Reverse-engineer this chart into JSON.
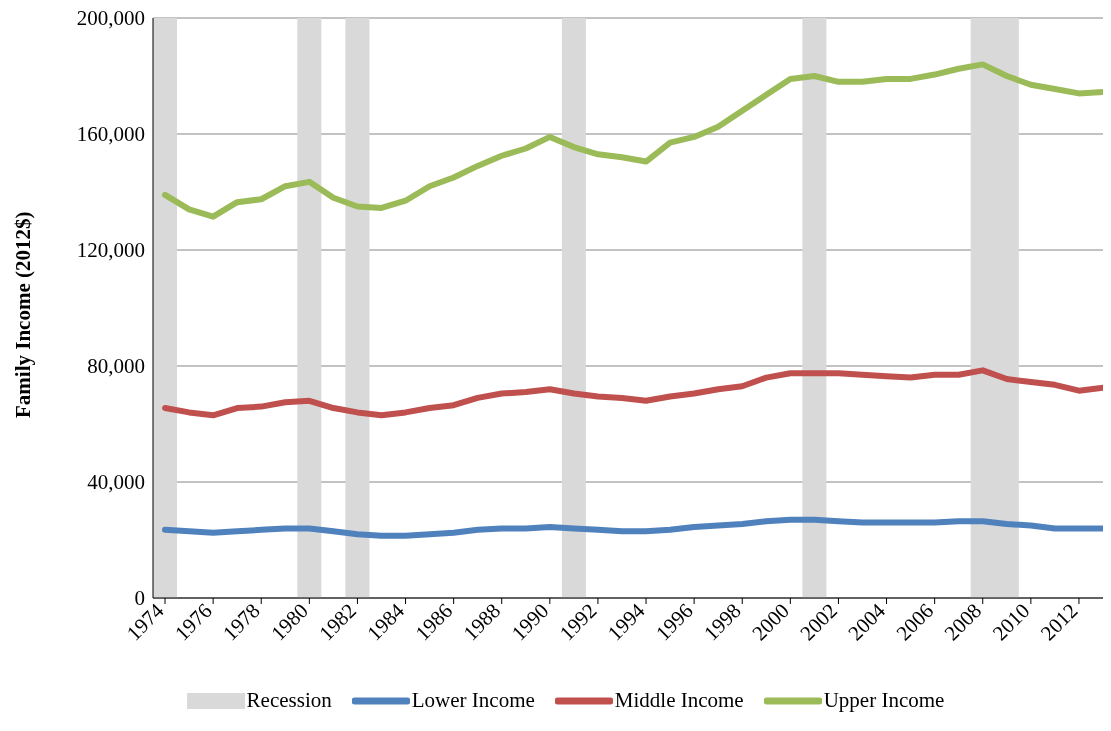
{
  "chart_data": {
    "type": "line",
    "ylabel": "Family Income (2012$)",
    "x": [
      1974,
      1975,
      1976,
      1977,
      1978,
      1979,
      1980,
      1981,
      1982,
      1983,
      1984,
      1985,
      1986,
      1987,
      1988,
      1989,
      1990,
      1991,
      1992,
      1993,
      1994,
      1995,
      1996,
      1997,
      1998,
      1999,
      2000,
      2001,
      2002,
      2003,
      2004,
      2005,
      2006,
      2007,
      2008,
      2009,
      2010,
      2011,
      2012,
      2013
    ],
    "series": [
      {
        "name": "Lower Income",
        "color": "#4f81bd",
        "values": [
          23500,
          23000,
          22500,
          23000,
          23500,
          24000,
          24000,
          23000,
          22000,
          21500,
          21500,
          22000,
          22500,
          23500,
          24000,
          24000,
          24500,
          24000,
          23500,
          23000,
          23000,
          23500,
          24500,
          25000,
          25500,
          26500,
          27000,
          27000,
          26500,
          26000,
          26000,
          26000,
          26000,
          26500,
          26500,
          25500,
          25000,
          24000,
          24000,
          24000
        ]
      },
      {
        "name": "Middle Income",
        "color": "#c0504d",
        "values": [
          65500,
          64000,
          63000,
          65500,
          66000,
          67500,
          68000,
          65500,
          64000,
          63000,
          64000,
          65500,
          66500,
          69000,
          70500,
          71000,
          72000,
          70500,
          69500,
          69000,
          68000,
          69500,
          70500,
          72000,
          73000,
          76000,
          77500,
          77500,
          77500,
          77000,
          76500,
          76000,
          77000,
          77000,
          78500,
          75500,
          74500,
          73500,
          71500,
          72500
        ]
      },
      {
        "name": "Upper Income",
        "color": "#9bbb59",
        "values": [
          139000,
          134000,
          131500,
          136500,
          137500,
          142000,
          143500,
          138000,
          135000,
          134500,
          137000,
          142000,
          145000,
          149000,
          152500,
          155000,
          159000,
          155500,
          153000,
          152000,
          150500,
          157000,
          159000,
          162500,
          168000,
          173500,
          179000,
          180000,
          178000,
          178000,
          179000,
          179000,
          180500,
          182500,
          184000,
          180000,
          177000,
          175500,
          174000,
          174500
        ]
      }
    ],
    "bands": [
      {
        "axis": "x",
        "from": 1973.5,
        "to": 1974.5,
        "label": "Recession",
        "color": "#d9d9d9"
      },
      {
        "axis": "x",
        "from": 1979.5,
        "to": 1980.5,
        "color": "#d9d9d9"
      },
      {
        "axis": "x",
        "from": 1981.5,
        "to": 1982.5,
        "color": "#d9d9d9"
      },
      {
        "axis": "x",
        "from": 1990.5,
        "to": 1991.5,
        "color": "#d9d9d9"
      },
      {
        "axis": "x",
        "from": 2000.5,
        "to": 2001.5,
        "color": "#d9d9d9"
      },
      {
        "axis": "x",
        "from": 2007.5,
        "to": 2009.5,
        "color": "#d9d9d9"
      }
    ],
    "xlim": [
      1973.5,
      2013
    ],
    "xticks": [
      1974,
      1976,
      1978,
      1980,
      1982,
      1984,
      1986,
      1988,
      1990,
      1992,
      1994,
      1996,
      1998,
      2000,
      2002,
      2004,
      2006,
      2008,
      2010,
      2012
    ],
    "ylim": [
      0,
      200000
    ],
    "yticks": [
      0,
      {
        "value": 40000,
        "label": "40,000"
      },
      {
        "value": 80000,
        "label": "80,000"
      },
      {
        "value": 120000,
        "label": "120,000"
      },
      {
        "value": 160000,
        "label": "160,000"
      },
      {
        "value": 200000,
        "label": "200,000"
      }
    ],
    "grid": "y",
    "legend": "bottom",
    "marker": "none",
    "line_style": "solid"
  }
}
